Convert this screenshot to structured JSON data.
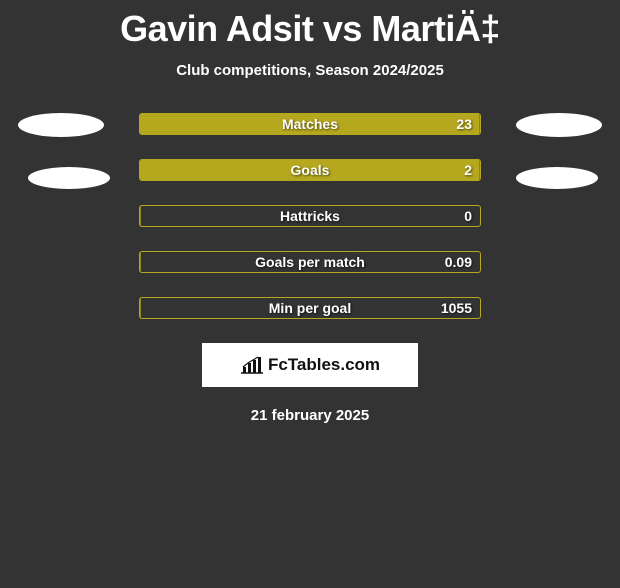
{
  "title": "Gavin Adsit vs MartiÄ‡",
  "subtitle": "Club competitions, Season 2024/2025",
  "bar_colors": {
    "fill": "#b5a81f",
    "border": "#b5a81f",
    "empty_bg": "rgba(181,168,31,0.0)"
  },
  "stats": [
    {
      "label": "Matches",
      "value": "23",
      "fill_pct": 100
    },
    {
      "label": "Goals",
      "value": "2",
      "fill_pct": 100
    },
    {
      "label": "Hattricks",
      "value": "0",
      "fill_pct": 0
    },
    {
      "label": "Goals per match",
      "value": "0.09",
      "fill_pct": 0
    },
    {
      "label": "Min per goal",
      "value": "1055",
      "fill_pct": 0
    }
  ],
  "logo_text": "FcTables.com",
  "date": "21 february 2025",
  "blobs": {
    "color": "#ffffff"
  }
}
